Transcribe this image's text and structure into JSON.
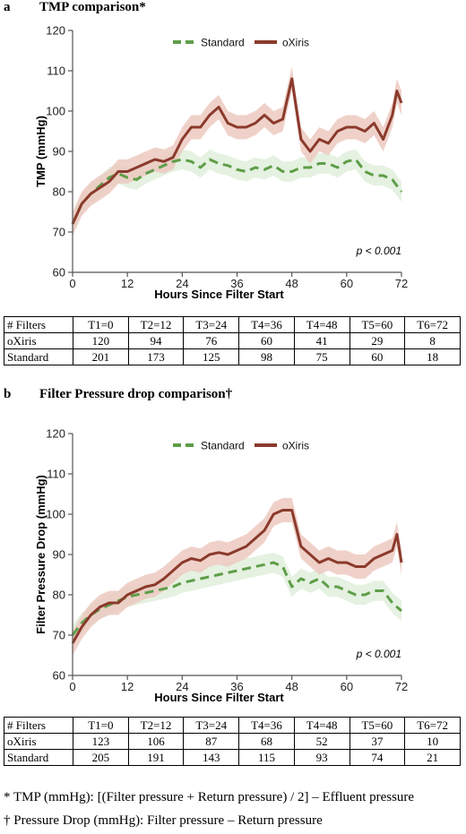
{
  "panels": [
    {
      "letter": "a",
      "heading": "TMP comparison*",
      "pvalue": "p < 0.001",
      "table": {
        "header": [
          "# Filters",
          "T1=0",
          "T2=12",
          "T3=24",
          "T4=36",
          "T4=48",
          "T5=60",
          "T6=72"
        ],
        "rows": [
          [
            "oXiris",
            "120",
            "94",
            "76",
            "60",
            "41",
            "29",
            "8"
          ],
          [
            "Standard",
            "201",
            "173",
            "125",
            "98",
            "75",
            "60",
            "18"
          ]
        ]
      }
    },
    {
      "letter": "b",
      "heading": "Filter Pressure drop comparison†",
      "pvalue": "p < 0.001",
      "table": {
        "header": [
          "# Filters",
          "T1=0",
          "T2=12",
          "T3=24",
          "T4=36",
          "T4=48",
          "T5=60",
          "T6=72"
        ],
        "rows": [
          [
            "oXiris",
            "123",
            "106",
            "87",
            "68",
            "52",
            "37",
            "10"
          ],
          [
            "Standard",
            "205",
            "191",
            "143",
            "115",
            "93",
            "74",
            "21"
          ]
        ]
      }
    }
  ],
  "footnotes": [
    "* TMP (mmHg): [(Filter pressure + Return pressure) / 2] – Effluent pressure",
    "† Pressure Drop (mmHg): Filter pressure – Return pressure"
  ],
  "colors": {
    "standard": "#5e9e48",
    "standard_band": "#e1efdc",
    "oxiris": "#8b3a2c",
    "oxiris_band": "#ecc9bf"
  },
  "chart_data": [
    {
      "type": "line",
      "xlabel": "Hours Since Filter Start",
      "ylabel": "TMP (mmHg)",
      "xlim": [
        0,
        72
      ],
      "ylim": [
        60,
        120
      ],
      "xticks": [
        0,
        12,
        24,
        36,
        48,
        60,
        72
      ],
      "yticks": [
        60,
        70,
        80,
        90,
        100,
        110,
        120
      ],
      "grid": false,
      "legend": "top-center",
      "x": [
        0,
        2,
        4,
        6,
        8,
        10,
        12,
        14,
        16,
        18,
        20,
        22,
        24,
        26,
        28,
        30,
        32,
        34,
        36,
        38,
        40,
        42,
        44,
        46,
        47,
        48,
        50,
        52,
        54,
        56,
        58,
        60,
        62,
        64,
        66,
        68,
        70,
        71,
        72
      ],
      "series": [
        {
          "name": "Standard",
          "style": "dashed",
          "values": [
            72,
            77,
            79.5,
            81.5,
            83.5,
            84.5,
            83.5,
            83,
            84.5,
            85.5,
            86.5,
            87.5,
            88,
            87.5,
            86,
            88,
            87,
            86.5,
            85.5,
            85,
            86,
            85.5,
            86.5,
            85,
            85,
            85,
            86,
            86,
            87,
            87,
            86,
            87.5,
            88,
            85,
            84,
            84,
            83,
            81.5,
            80
          ],
          "band": 2.5
        },
        {
          "name": "oXiris",
          "style": "solid",
          "values": [
            72,
            77,
            79.5,
            81,
            82.5,
            85,
            85,
            86,
            87,
            88,
            87.5,
            88.5,
            93,
            96,
            96,
            99,
            101,
            97,
            96,
            96,
            97,
            99,
            97,
            98,
            103,
            108,
            93,
            90,
            93,
            92,
            95,
            96,
            96,
            95,
            97,
            93,
            99,
            105,
            102
          ],
          "band": 3
        }
      ]
    },
    {
      "type": "line",
      "xlabel": "Hours Since Filter Start",
      "ylabel": "Filter Pressure Drop (mmHg)",
      "xlim": [
        0,
        72
      ],
      "ylim": [
        60,
        120
      ],
      "xticks": [
        0,
        12,
        24,
        36,
        48,
        60,
        72
      ],
      "yticks": [
        60,
        70,
        80,
        90,
        100,
        110,
        120
      ],
      "grid": false,
      "legend": "top-center",
      "x": [
        0,
        2,
        4,
        6,
        8,
        10,
        12,
        14,
        16,
        18,
        20,
        22,
        24,
        26,
        28,
        30,
        32,
        34,
        36,
        38,
        40,
        42,
        44,
        46,
        48,
        50,
        52,
        54,
        56,
        58,
        60,
        62,
        64,
        66,
        68,
        70,
        71,
        72
      ],
      "series": [
        {
          "name": "Standard",
          "style": "dashed",
          "values": [
            70,
            73,
            75,
            76.5,
            77.5,
            78.5,
            79.5,
            80,
            80.5,
            81,
            81.5,
            82,
            83,
            83.5,
            84,
            84.5,
            85,
            85.5,
            86,
            86.5,
            87,
            87.5,
            88,
            87,
            82,
            84,
            83,
            84,
            82,
            82,
            81,
            80,
            80,
            81,
            81,
            78,
            77,
            76
          ],
          "band": 2.5
        },
        {
          "name": "oXiris",
          "style": "solid",
          "values": [
            68,
            72,
            75,
            77,
            78,
            78,
            80,
            81,
            82,
            82.5,
            84,
            86,
            88,
            89,
            88.5,
            90,
            90.5,
            90,
            91,
            92,
            94,
            96,
            100,
            101,
            101,
            92,
            90,
            88,
            89,
            88,
            88,
            87,
            87,
            89,
            90,
            91,
            95,
            88
          ],
          "band": 3
        }
      ]
    }
  ]
}
